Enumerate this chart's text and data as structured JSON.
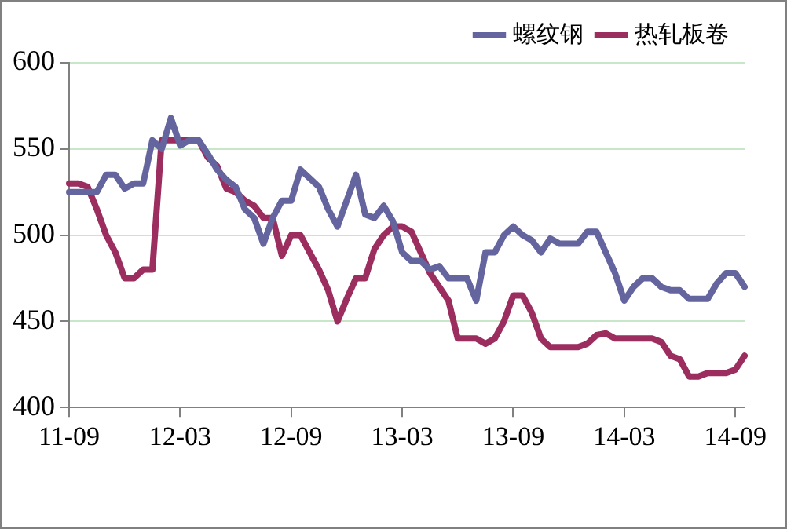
{
  "chart_data": {
    "type": "line",
    "categories": [
      "11-09",
      null,
      null,
      null,
      null,
      null,
      null,
      null,
      null,
      null,
      null,
      null,
      "12-03",
      null,
      null,
      null,
      null,
      null,
      null,
      null,
      null,
      null,
      null,
      null,
      "12-09",
      null,
      null,
      null,
      null,
      null,
      null,
      null,
      null,
      null,
      null,
      null,
      "13-03",
      null,
      null,
      null,
      null,
      null,
      null,
      null,
      null,
      null,
      null,
      null,
      "13-09",
      null,
      null,
      null,
      null,
      null,
      null,
      null,
      null,
      null,
      null,
      null,
      "14-03",
      null,
      null,
      null,
      null,
      null,
      null,
      null,
      null,
      null,
      null,
      null,
      "14-09",
      null
    ],
    "series": [
      {
        "name": "螺纹钢",
        "color": "#64649f",
        "values": [
          525,
          525,
          525,
          525,
          535,
          535,
          527,
          530,
          530,
          555,
          550,
          568,
          552,
          555,
          555,
          547,
          538,
          532,
          528,
          515,
          510,
          495,
          510,
          520,
          520,
          538,
          533,
          528,
          515,
          505,
          520,
          535,
          512,
          510,
          517,
          508,
          490,
          485,
          485,
          480,
          482,
          475,
          475,
          475,
          462,
          490,
          490,
          500,
          505,
          500,
          497,
          490,
          498,
          495,
          495,
          495,
          502,
          502,
          490,
          478,
          462,
          470,
          475,
          475,
          470,
          468,
          468,
          463,
          463,
          463,
          472,
          478,
          478,
          470
        ]
      },
      {
        "name": "热轧板卷",
        "color": "#9b2d5f",
        "values": [
          530,
          530,
          528,
          515,
          500,
          490,
          475,
          475,
          480,
          480,
          555,
          555,
          555,
          555,
          555,
          545,
          540,
          527,
          525,
          520,
          517,
          510,
          510,
          488,
          500,
          500,
          490,
          480,
          468,
          450,
          463,
          475,
          475,
          492,
          500,
          505,
          505,
          502,
          490,
          478,
          470,
          462,
          440,
          440,
          440,
          437,
          440,
          450,
          465,
          465,
          455,
          440,
          435,
          435,
          435,
          435,
          437,
          442,
          443,
          440,
          440,
          440,
          440,
          440,
          438,
          430,
          428,
          418,
          418,
          420,
          420,
          420,
          422,
          430
        ]
      }
    ],
    "ylim": [
      400,
      600
    ],
    "yticks": [
      400,
      450,
      500,
      550,
      600
    ],
    "grid": "y",
    "legend": "top",
    "marker": "none",
    "line_style": "solid"
  }
}
